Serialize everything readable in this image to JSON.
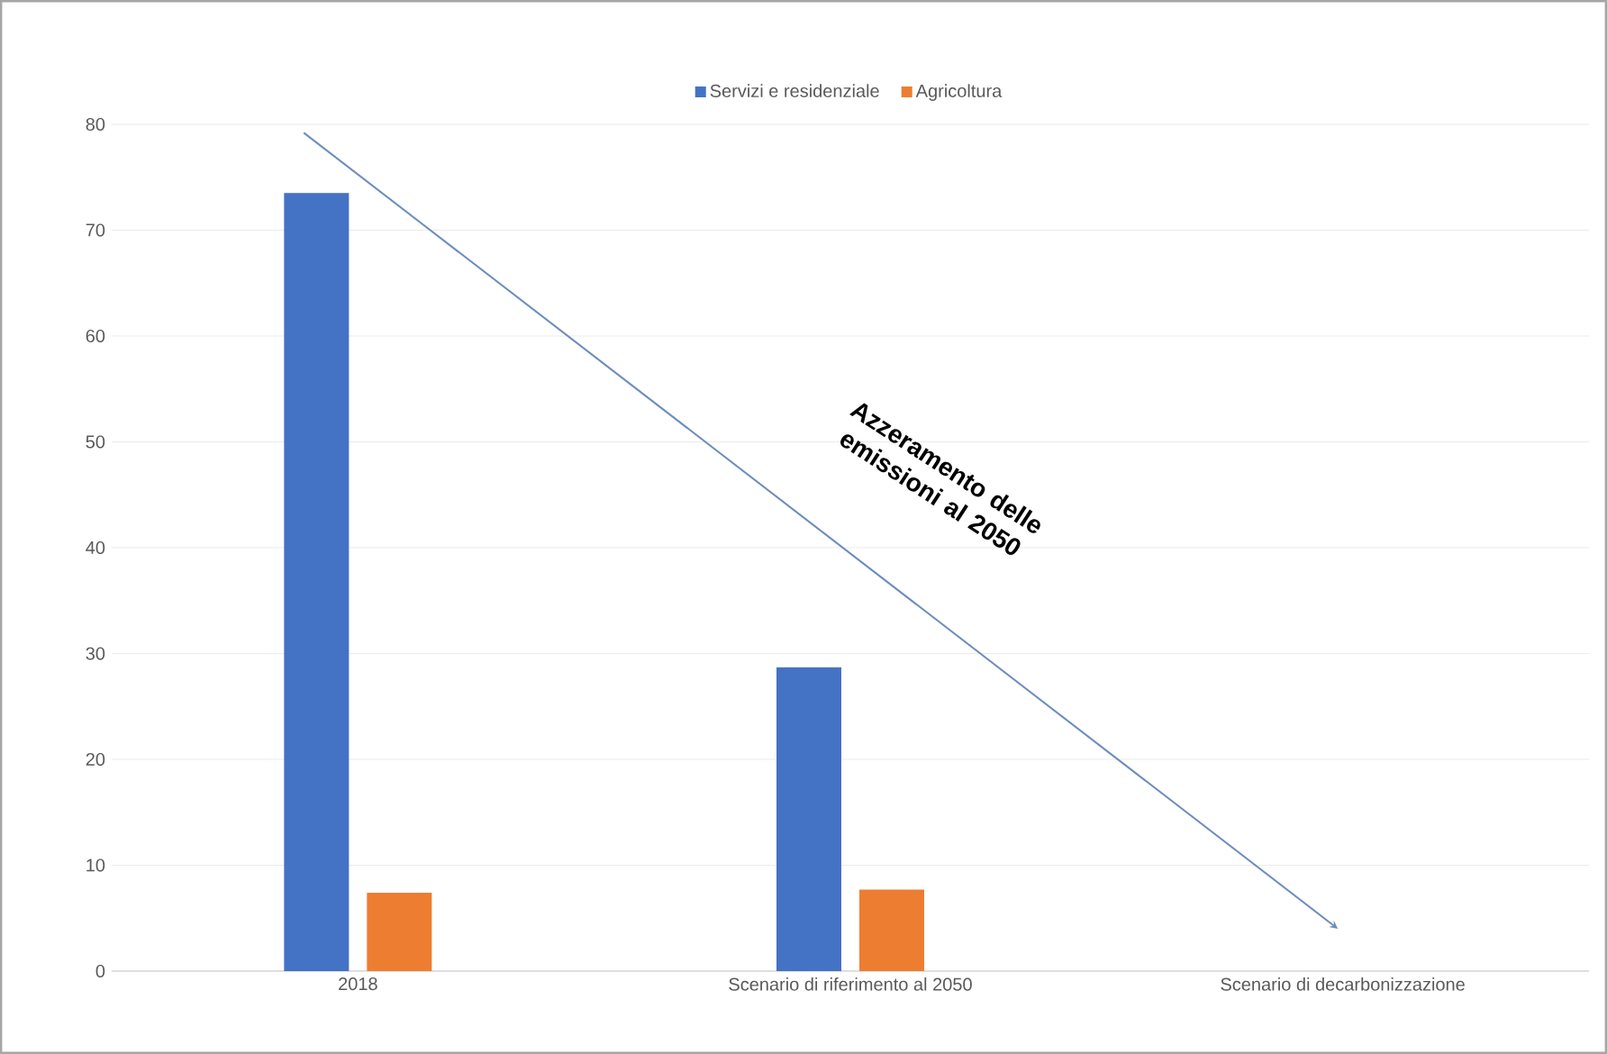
{
  "chart_data": {
    "type": "bar",
    "categories": [
      "2018",
      "Scenario di riferimento al 2050",
      "Scenario di decarbonizzazione"
    ],
    "series": [
      {
        "name": "Servizi e residenziale",
        "color": "#4472c4",
        "values": [
          73.5,
          28.7,
          0
        ]
      },
      {
        "name": "Agricoltura",
        "color": "#ed7d31",
        "values": [
          7.4,
          7.7,
          0
        ]
      }
    ],
    "ylim": [
      0,
      80
    ],
    "yticks": [
      0,
      10,
      20,
      30,
      40,
      50,
      60,
      70,
      80
    ],
    "grid": "y",
    "legend": "top",
    "annotations": [
      "Azzeramento delle emissioni al 2050"
    ]
  }
}
